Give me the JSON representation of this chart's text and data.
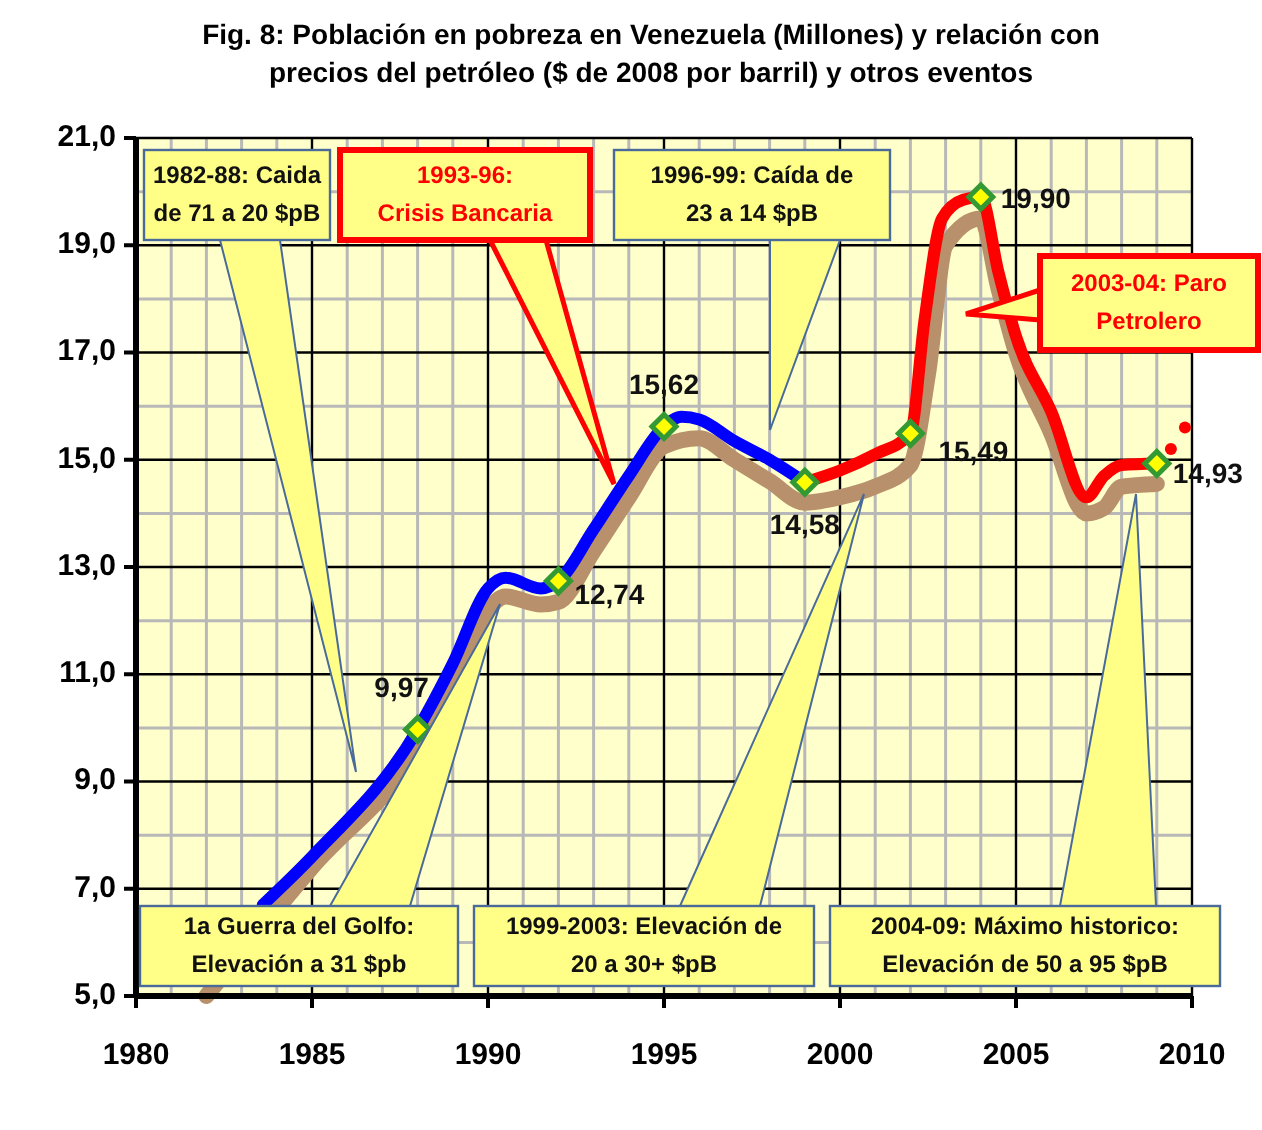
{
  "chart_data": {
    "type": "line",
    "title": "Fig. 8: Población en pobreza en Venezuela (Millones) y relación con precios del petróleo ($ de 2008 por barril) y otros eventos",
    "xlim": [
      1980,
      2010
    ],
    "xticks": [
      1980,
      1985,
      1990,
      1995,
      2000,
      2005,
      2010
    ],
    "ylim": [
      5,
      21
    ],
    "yticks": [
      {
        "value": 5,
        "label": "5,0"
      },
      {
        "value": 7,
        "label": "7,0"
      },
      {
        "value": 9,
        "label": "9,0"
      },
      {
        "value": 11,
        "label": "11,0"
      },
      {
        "value": 13,
        "label": "13,0"
      },
      {
        "value": 15,
        "label": "15,0"
      },
      {
        "value": 17,
        "label": "17,0"
      },
      {
        "value": 19,
        "label": "19,0"
      },
      {
        "value": 21,
        "label": "21,0"
      }
    ],
    "grid": true,
    "line_style": "solid",
    "series": [
      {
        "color": "#b8916c",
        "x": [
          1982,
          1985,
          1988,
          1989,
          1990,
          1990.5,
          1991.5,
          1992,
          1993,
          1994,
          1995,
          1996,
          1997,
          1998,
          1999,
          2000,
          2001,
          2002,
          2002.5,
          2003,
          2004,
          2004.5,
          2005,
          2006,
          2007,
          2007.5,
          2008,
          2009
        ],
        "values": [
          5.0,
          7.4,
          9.6,
          10.8,
          12.2,
          12.45,
          12.3,
          12.35,
          13.3,
          14.3,
          15.25,
          15.4,
          15.0,
          14.6,
          14.2,
          14.3,
          14.5,
          14.9,
          16.6,
          19.0,
          19.5,
          18.2,
          17.0,
          15.5,
          14.0,
          14.1,
          14.5,
          14.55
        ]
      },
      {
        "color": "#0000ff",
        "x": [
          1983.6,
          1985,
          1988,
          1989,
          1990,
          1990.5,
          1991.5,
          1992,
          1993,
          1994,
          1995,
          1995.5,
          1996,
          1997,
          1998,
          1999
        ],
        "values": [
          6.7,
          7.6,
          9.97,
          11.2,
          12.6,
          12.8,
          12.6,
          12.74,
          13.7,
          14.7,
          15.62,
          15.8,
          15.75,
          15.35,
          15.0,
          14.58
        ]
      },
      {
        "color": "#ff0000",
        "x": [
          1999,
          2000,
          2001,
          2002,
          2002.4,
          2002.9,
          2003.5,
          2004,
          2004.5,
          2005,
          2006,
          2007,
          2007.5,
          2008,
          2009
        ],
        "values": [
          14.58,
          14.8,
          15.1,
          15.49,
          17.6,
          19.5,
          19.85,
          19.9,
          18.5,
          17.3,
          15.9,
          14.3,
          14.7,
          14.9,
          14.93
        ]
      },
      {
        "type": "scatter",
        "color": "#ff0000",
        "marker": "circle",
        "x": [
          2009.4,
          2009.8
        ],
        "values": [
          15.2,
          15.6
        ]
      },
      {
        "type": "scatter",
        "color": "#339933",
        "marker": "diamond",
        "x": [
          1988,
          1992,
          1995,
          1999,
          2002,
          2004,
          2009
        ],
        "values": [
          9.97,
          12.74,
          15.62,
          14.58,
          15.49,
          19.9,
          14.93
        ],
        "value_labels": [
          "9,97",
          "12,74",
          "15,62",
          "14,58",
          "15,49",
          "19,90",
          "14,93"
        ]
      }
    ],
    "annotations": [
      "1982-88: Caida de 71 a 20 $pB",
      "1993-96: Crisis Bancaria",
      "1996-99: Caída de 23 a 14 $pB",
      "2003-04: Paro Petrolero",
      "1a Guerra del Golfo: Elevación a  31 $pb",
      "1999-2003: Elevación de 20 a 30+ $pB",
      "2004-09:  Máximo historico: Elevación de 50 a 95 $pB"
    ]
  }
}
